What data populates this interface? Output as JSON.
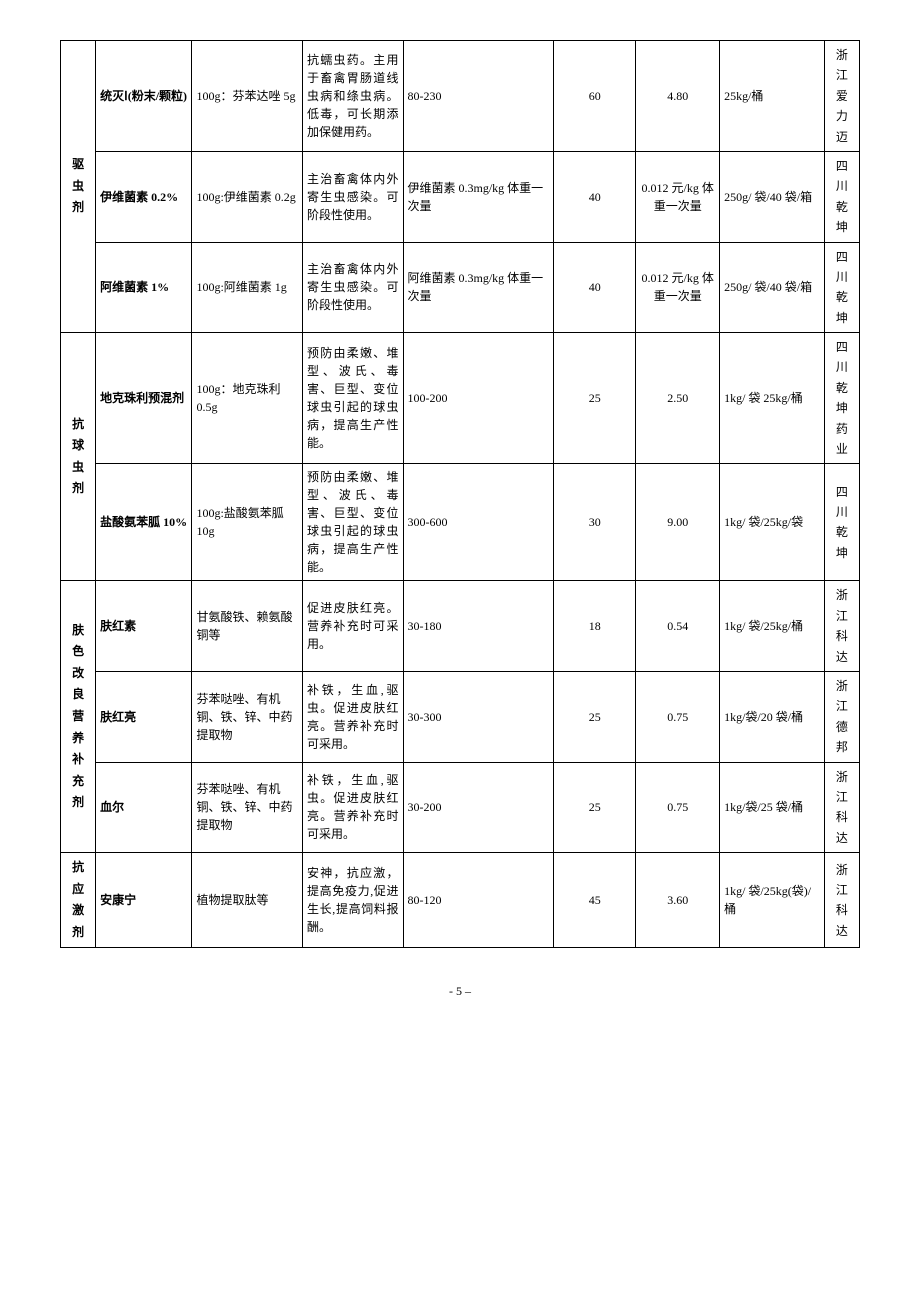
{
  "footer": "- 5 –",
  "categories": [
    {
      "label": "驱虫剂",
      "rowspan": 3
    },
    {
      "label": "抗球虫剂",
      "rowspan": 2
    },
    {
      "label": "肤色改良营养补充剂",
      "rowspan": 3
    },
    {
      "label": "抗应激剂",
      "rowspan": 1
    }
  ],
  "rows": [
    {
      "name": "统灭Ⅰ(粉末/颗粒)",
      "spec": "100g：芬苯达唑 5g",
      "func": "抗蠕虫药。主用于畜禽胃肠道线虫病和绦虫病。低毒，可长期添加保健用药。",
      "dose": "80-230",
      "amt": "60",
      "price": "4.80",
      "pkg": "25kg/桶",
      "mfr": "浙江爱力迈"
    },
    {
      "name": "伊维菌素 0.2%",
      "spec": "100g:伊维菌素 0.2g",
      "func": "主治畜禽体内外寄生虫感染。可阶段性使用。",
      "dose": "伊维菌素 0.3mg/kg 体重一次量",
      "amt": "40",
      "price": "0.012 元/kg 体重一次量",
      "pkg": "250g/ 袋/40 袋/箱",
      "mfr": "四川乾坤"
    },
    {
      "name": "阿维菌素 1%",
      "spec": "100g:阿维菌素 1g",
      "func": "主治畜禽体内外寄生虫感染。可阶段性使用。",
      "dose": "阿维菌素 0.3mg/kg 体重一次量",
      "amt": "40",
      "price": "0.012 元/kg 体重一次量",
      "pkg": "250g/ 袋/40 袋/箱",
      "mfr": "四川乾坤"
    },
    {
      "name": "地克珠利预混剂",
      "spec": "100g：地克珠利 0.5g",
      "func": "预防由柔嫩、堆型、波氏、毒害、巨型、变位球虫引起的球虫病，提高生产性能。",
      "dose": "100-200",
      "amt": "25",
      "price": "2.50",
      "pkg": "1kg/ 袋 25kg/桶",
      "mfr": "四川乾坤药业"
    },
    {
      "name": "盐酸氨苯胍 10%",
      "spec": "100g:盐酸氨苯胍 10g",
      "func": "预防由柔嫩、堆型、波氏、毒害、巨型、变位球虫引起的球虫病，提高生产性能。",
      "dose": "300-600",
      "amt": "30",
      "price": "9.00",
      "pkg": "1kg/  袋/25kg/袋",
      "mfr": "四川乾坤"
    },
    {
      "name": "肤红素",
      "spec": "甘氨酸铁、赖氨酸铜等",
      "func": "促进皮肤红亮。营养补充时可采用。",
      "dose": "30-180",
      "amt": "18",
      "price": "0.54",
      "pkg": "1kg/  袋/25kg/桶",
      "mfr": "浙江科达"
    },
    {
      "name": "肤红亮",
      "spec": "芬苯哒唑、有机铜、铁、锌、中药提取物",
      "func": "补铁，生血,驱虫。促进皮肤红亮。营养补充时可采用。",
      "dose": "30-300",
      "amt": "25",
      "price": "0.75",
      "pkg": "1kg/袋/20 袋/桶",
      "mfr": "浙江德邦"
    },
    {
      "name": "血尔",
      "spec": "芬苯哒唑、有机铜、铁、锌、中药提取物",
      "func": "补铁，生血,驱虫。促进皮肤红亮。营养补充时可采用。",
      "dose": "30-200",
      "amt": "25",
      "price": "0.75",
      "pkg": "1kg/袋/25 袋/桶",
      "mfr": "浙江科达"
    },
    {
      "name": "安康宁",
      "spec": "植物提取肽等",
      "func": "安神，抗应激，提高免疫力,促进生长,提高饲料报酬。",
      "dose": "80-120",
      "amt": "45",
      "price": "3.60",
      "pkg": "1kg/  袋/25kg(袋)/桶",
      "mfr": "浙江科达"
    }
  ]
}
